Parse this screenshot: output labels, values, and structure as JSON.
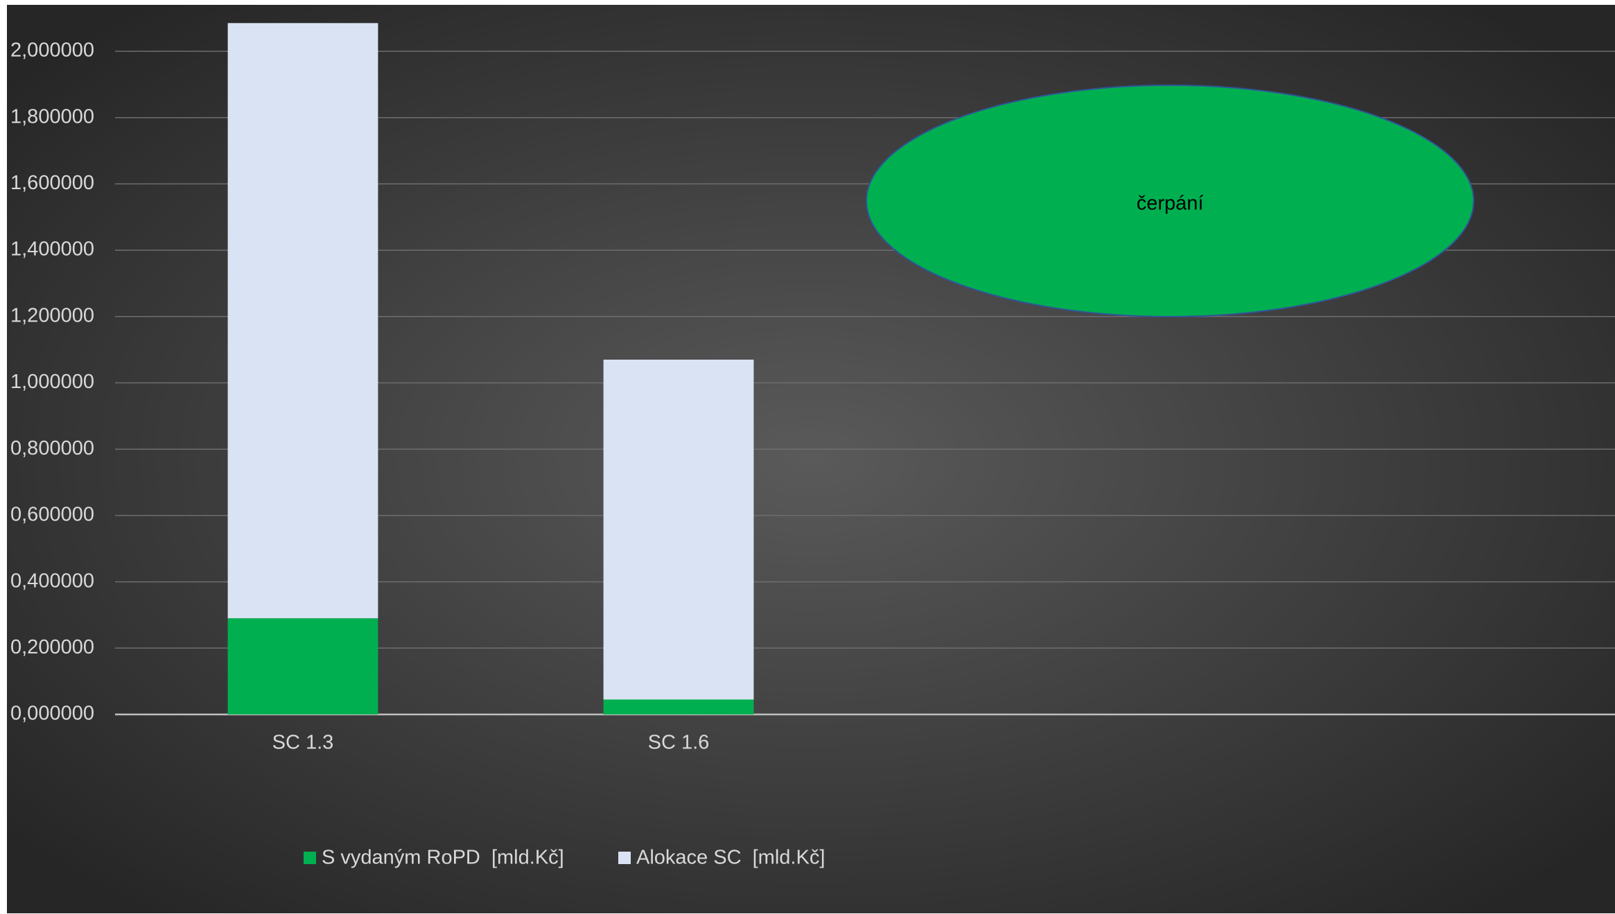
{
  "chart_data": {
    "type": "stacked_bar",
    "categories": [
      "SC 1.3",
      "SC 1.6"
    ],
    "series": [
      {
        "name": "S vydaným RoPD  [mld.Kč]",
        "color": "#00b050",
        "values": [
          0.29,
          0.045
        ]
      },
      {
        "name": "Alokace SC  [mld.Kč]",
        "color": "#dae3f3",
        "values": [
          1.795,
          1.025
        ]
      }
    ],
    "ylim": [
      0,
      2.14
    ],
    "yticks": [
      {
        "value": 0,
        "label": "0,000000"
      },
      {
        "value": 0.2,
        "label": "0,200000"
      },
      {
        "value": 0.4,
        "label": "0,400000"
      },
      {
        "value": 0.6,
        "label": "0,600000"
      },
      {
        "value": 0.8,
        "label": "0,800000"
      },
      {
        "value": 1,
        "label": "1,000000"
      },
      {
        "value": 1.2,
        "label": "1,200000"
      },
      {
        "value": 1.4,
        "label": "1,400000"
      },
      {
        "value": 1.6,
        "label": "1,600000"
      },
      {
        "value": 1.8,
        "label": "1,800000"
      },
      {
        "value": 2,
        "label": "2,000000"
      }
    ],
    "grid": true,
    "legend": "bottom",
    "annotation": "čerpání"
  }
}
